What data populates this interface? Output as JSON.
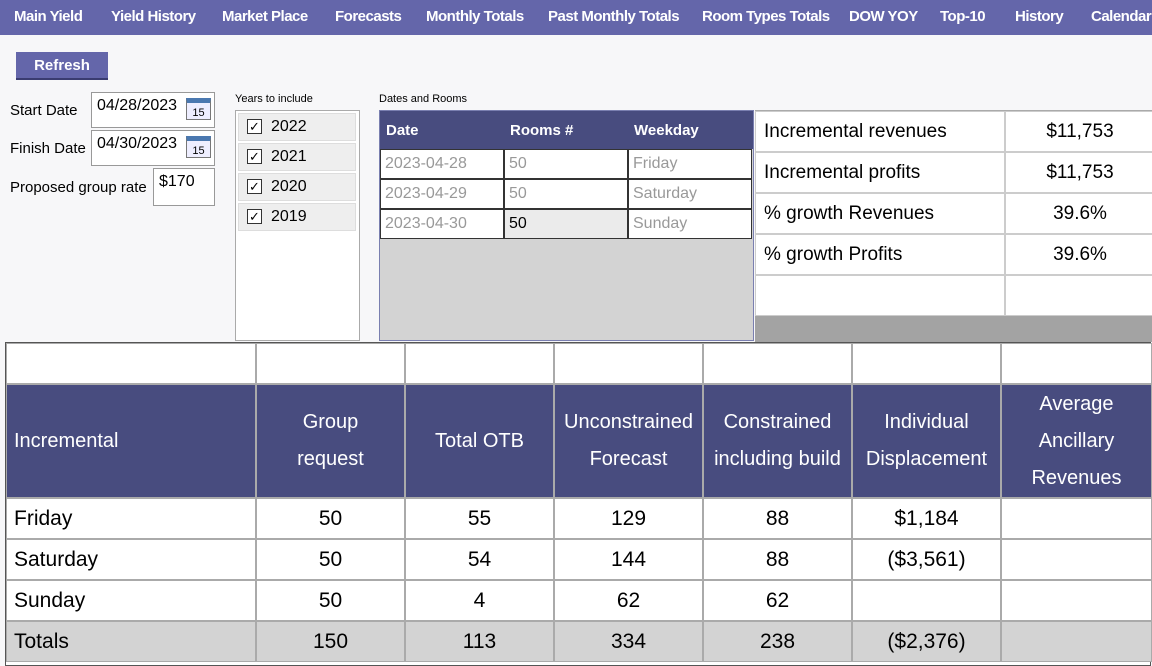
{
  "nav": [
    "Main Yield",
    "Yield History",
    "Market Place",
    "Forecasts",
    "Monthly Totals",
    "Past Monthly Totals",
    "Room Types Totals",
    "DOW YOY",
    "Top-10",
    "History",
    "Calendar"
  ],
  "refresh": "Refresh",
  "form": {
    "start_label": "Start Date",
    "start_value": "04/28/2023",
    "finish_label": "Finish Date",
    "finish_value": "04/30/2023",
    "calendar_icon": "15",
    "rate_label": "Proposed group rate",
    "rate_value": "$170"
  },
  "years": {
    "title": "Years to include",
    "items": [
      "2022",
      "2021",
      "2020",
      "2019"
    ]
  },
  "dates": {
    "title": "Dates and Rooms",
    "headers": [
      "Date",
      "Rooms #",
      "Weekday"
    ],
    "rows": [
      [
        "2023-04-28",
        "50",
        "Friday"
      ],
      [
        "2023-04-29",
        "50",
        "Saturday"
      ],
      [
        "2023-04-30",
        "50",
        "Sunday"
      ]
    ]
  },
  "summary": {
    "rows": [
      [
        "Incremental revenues",
        "$11,753"
      ],
      [
        "Incremental profits",
        "$11,753"
      ],
      [
        "% growth Revenues",
        "39.6%"
      ],
      [
        "% growth Profits",
        "39.6%"
      ]
    ]
  },
  "table": {
    "headers": [
      "Incremental",
      "Group request",
      "Total OTB",
      "Unconstrained Forecast",
      "Constrained including build",
      "Individual Displacement",
      "Average Ancillary Revenues"
    ],
    "rows": [
      [
        "Friday",
        "50",
        "55",
        "129",
        "88",
        "$1,184",
        null
      ],
      [
        "Saturday",
        "50",
        "54",
        "144",
        "88",
        "($3,561)",
        null
      ],
      [
        "Sunday",
        "50",
        "4",
        "62",
        "62",
        null,
        null
      ]
    ],
    "totals": [
      "Totals",
      "150",
      "113",
      "334",
      "238",
      "($2,376)",
      null
    ]
  }
}
